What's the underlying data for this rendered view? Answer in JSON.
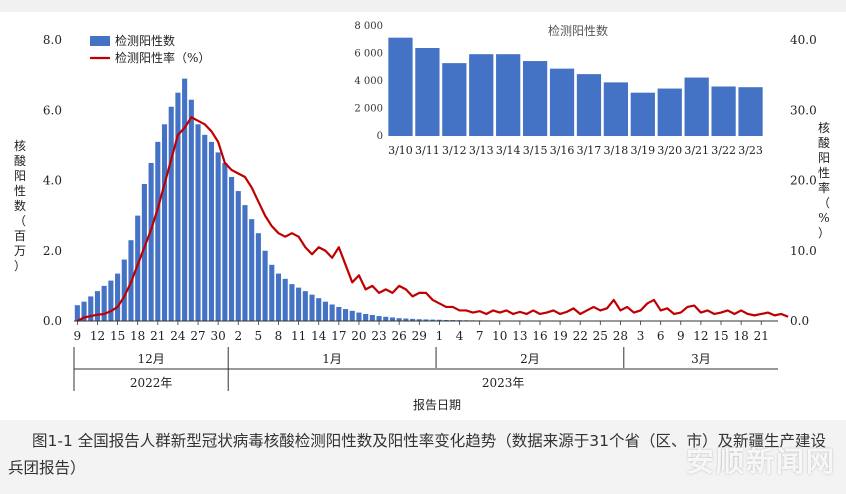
{
  "chart_data": [
    {
      "type": "bar+line",
      "legend": {
        "bar_label": "检测阳性数",
        "line_label": "检测阳性率（%）",
        "placement": "top-left"
      },
      "y_left": {
        "ticks": [
          "0.0",
          "2.0",
          "4.0",
          "6.0",
          "8.0"
        ],
        "range": [
          0,
          8
        ],
        "label_chars": [
          "核",
          "酸",
          "阳",
          "性",
          "数",
          "（",
          "百",
          "万",
          "）"
        ]
      },
      "y_right": {
        "ticks": [
          "0.0",
          "10.0",
          "20.0",
          "30.0",
          "40.0"
        ],
        "range": [
          0,
          40
        ],
        "label_chars": [
          "核",
          "酸",
          "阳",
          "性",
          "率",
          "（",
          "%",
          "）"
        ]
      },
      "x_day_labels": [
        "9",
        "12",
        "15",
        "18",
        "21",
        "24",
        "27",
        "30",
        "2",
        "5",
        "8",
        "11",
        "14",
        "17",
        "20",
        "23",
        "26",
        "29",
        "1",
        "4",
        "7",
        "10",
        "13",
        "16",
        "19",
        "22",
        "25",
        "28",
        "3",
        "6",
        "9",
        "12",
        "15",
        "18",
        "21"
      ],
      "months": [
        "12月",
        "1月",
        "2月",
        "3月"
      ],
      "years": [
        "2022年",
        "2023年"
      ],
      "x_title": "报告日期",
      "dates_start": "2022-12-09",
      "bar_values": [
        0.45,
        0.55,
        0.7,
        0.85,
        1.0,
        1.15,
        1.35,
        1.75,
        2.3,
        3.0,
        3.9,
        4.5,
        5.1,
        5.6,
        6.1,
        6.5,
        6.9,
        6.3,
        5.6,
        5.3,
        5.1,
        4.8,
        4.5,
        4.1,
        3.7,
        3.3,
        2.9,
        2.5,
        2.0,
        1.6,
        1.35,
        1.2,
        1.05,
        0.95,
        0.85,
        0.75,
        0.65,
        0.55,
        0.47,
        0.4,
        0.34,
        0.29,
        0.24,
        0.2,
        0.17,
        0.14,
        0.12,
        0.1,
        0.08,
        0.07,
        0.06,
        0.05,
        0.045,
        0.04,
        0.035,
        0.03,
        0.027,
        0.024,
        0.021,
        0.019,
        0.017,
        0.015,
        0.013,
        0.012,
        0.011,
        0.01,
        0.009,
        0.008,
        0.008,
        0.007,
        0.007,
        0.006,
        0.006,
        0.005,
        0.005,
        0.005,
        0.004,
        0.004,
        0.004,
        0.004,
        0.004,
        0.004,
        0.004,
        0.004,
        0.004,
        0.004,
        0.004,
        0.004,
        0.004,
        0.004,
        0.004,
        0.004,
        0.004,
        0.004,
        0.004,
        0.004,
        0.004,
        0.004,
        0.004,
        0.004,
        0.004,
        0.004,
        0.004,
        0.004,
        0.004
      ],
      "rate_values": [
        0.0,
        0.5,
        0.7,
        0.9,
        1.0,
        1.4,
        2.0,
        3.5,
        5.5,
        8.0,
        10.5,
        13.0,
        16.0,
        19.5,
        23.0,
        26.5,
        27.5,
        29.0,
        28.5,
        28.0,
        27.0,
        25.5,
        22.5,
        21.5,
        21.0,
        20.5,
        19.0,
        17.0,
        15.0,
        13.5,
        12.5,
        12.0,
        12.5,
        12.0,
        10.5,
        9.5,
        10.5,
        10.0,
        9.0,
        10.5,
        8.0,
        5.5,
        6.5,
        4.5,
        5.0,
        4.0,
        4.5,
        4.0,
        5.0,
        4.5,
        3.5,
        4.0,
        4.0,
        3.0,
        2.5,
        2.0,
        2.0,
        1.5,
        1.5,
        1.2,
        1.4,
        1.0,
        1.5,
        1.2,
        1.5,
        1.0,
        1.3,
        1.0,
        1.5,
        1.0,
        1.2,
        1.5,
        1.0,
        1.3,
        1.8,
        1.0,
        1.5,
        2.0,
        1.5,
        1.8,
        3.0,
        1.5,
        2.0,
        1.2,
        1.5,
        2.5,
        3.0,
        1.5,
        1.8,
        1.0,
        1.2,
        2.0,
        2.2,
        1.2,
        1.5,
        1.0,
        1.2,
        1.5,
        1.0,
        1.5,
        1.0,
        0.8,
        1.0,
        1.2,
        0.8,
        1.0,
        0.6
      ]
    },
    {
      "type": "bar",
      "title": "检测阳性数",
      "y_ticks": [
        "0",
        "2 000",
        "4 000",
        "6 000",
        "8 000"
      ],
      "ylim": [
        0,
        8000
      ],
      "categories": [
        "3/10",
        "3/11",
        "3/12",
        "3/13",
        "3/14",
        "3/15",
        "3/16",
        "3/17",
        "3/18",
        "3/19",
        "3/20",
        "3/21",
        "3/22",
        "3/23"
      ],
      "values": [
        7150,
        6400,
        5300,
        5950,
        5950,
        5450,
        4900,
        4500,
        3900,
        3150,
        3450,
        4250,
        3600,
        3550
      ]
    }
  ],
  "caption": "图1-1 全国报告人群新型冠状病毒核酸检测阳性数及阳性率变化趋势（数据来源于31个省（区、市）及新疆生产建设兵团报告）",
  "watermark": "安顺新闻网",
  "colors": {
    "bar": "#4472c4",
    "line": "#c00000",
    "axis": "#333333"
  }
}
